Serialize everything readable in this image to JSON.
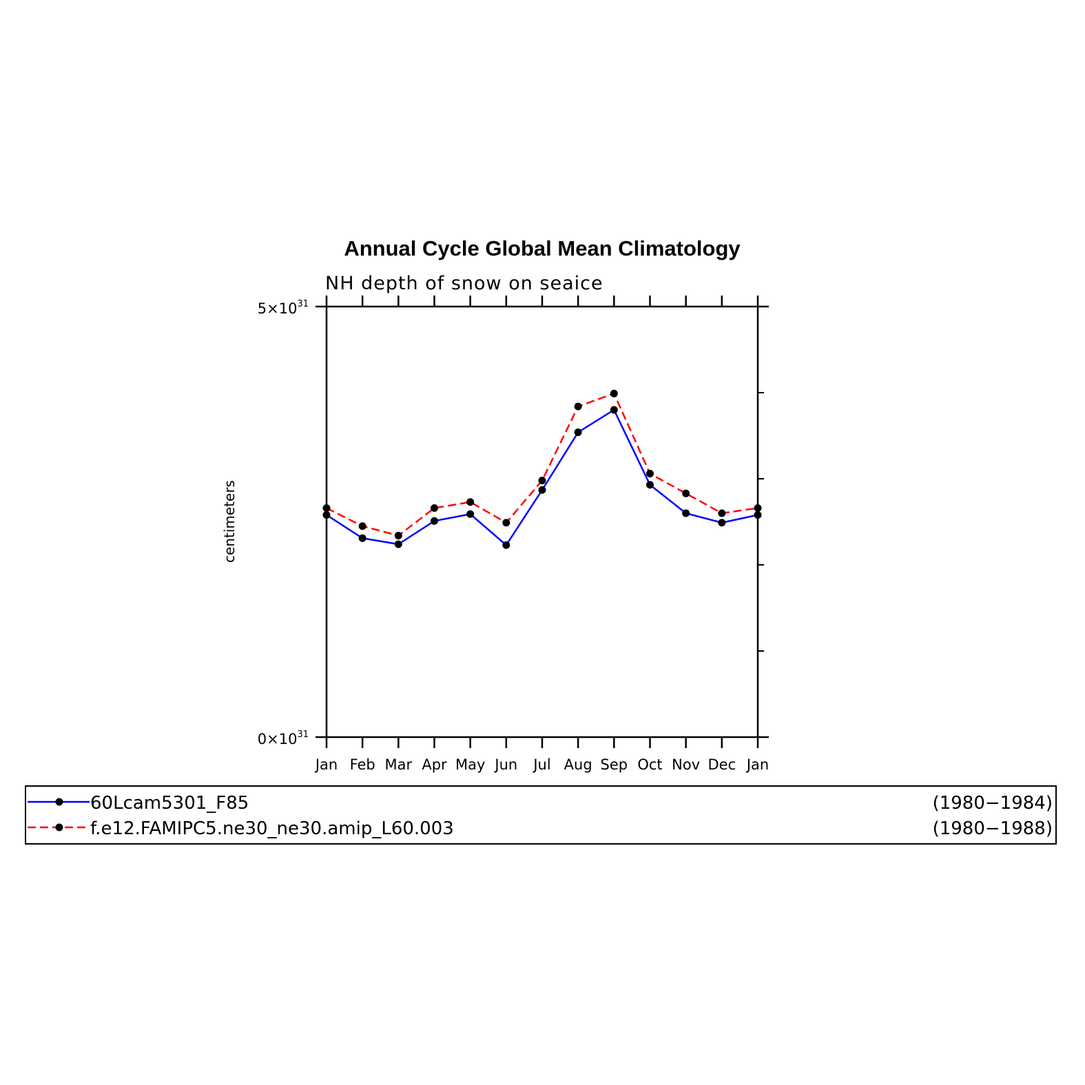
{
  "chart_data": {
    "type": "line",
    "title": "Annual Cycle Global Mean Climatology",
    "subtitle": "NH depth of snow on seaice",
    "ylabel": "centimeters",
    "xlabel": "",
    "categories": [
      "Jan",
      "Feb",
      "Mar",
      "Apr",
      "May",
      "Jun",
      "Jul",
      "Aug",
      "Sep",
      "Oct",
      "Nov",
      "Dec",
      "Jan"
    ],
    "ylim": [
      0,
      5
    ],
    "y_unit_exponent": 31,
    "y_tick_labels": [
      {
        "value": 0,
        "base": "0×10",
        "exp": "31"
      },
      {
        "value": 5,
        "base": "5×10",
        "exp": "31"
      }
    ],
    "y_minor_ticks": [
      1,
      2,
      3,
      4
    ],
    "grid": false,
    "legend_position": "bottom",
    "series": [
      {
        "name": "60Lcam5301_F85",
        "years": "(1980−1984)",
        "color": "#0000ff",
        "dash": "solid",
        "values": [
          2.58,
          2.31,
          2.24,
          2.51,
          2.59,
          2.23,
          2.87,
          3.54,
          3.8,
          2.93,
          2.6,
          2.49,
          2.58
        ]
      },
      {
        "name": "f.e12.FAMIPC5.ne30_ne30.amip_L60.003",
        "years": "(1980−1988)",
        "color": "#ff0000",
        "dash": "dashed",
        "values": [
          2.66,
          2.45,
          2.34,
          2.66,
          2.73,
          2.49,
          2.98,
          3.84,
          3.99,
          3.06,
          2.83,
          2.6,
          2.66
        ]
      }
    ]
  },
  "colors": {
    "marker": "#000000",
    "axis": "#000000"
  }
}
